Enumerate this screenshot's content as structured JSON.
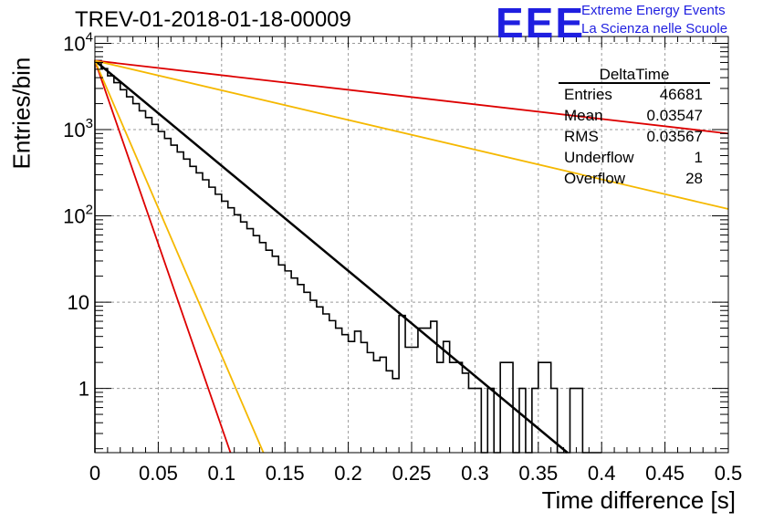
{
  "title": "TREV-01-2018-01-18-00009",
  "logo": {
    "mark": "EEE",
    "line1": "Extreme Energy Events",
    "line2": "La Scienza nelle Scuole",
    "color": "#1f1fe0"
  },
  "stats": {
    "name": "DeltaTime",
    "rows": [
      {
        "label": "Entries",
        "value": "46681"
      },
      {
        "label": "Mean",
        "value": "0.03547"
      },
      {
        "label": "RMS",
        "value": "0.03567"
      },
      {
        "label": "Underflow",
        "value": "1"
      },
      {
        "label": "Overflow",
        "value": "28"
      }
    ]
  },
  "chart_data": {
    "type": "line",
    "title": "TREV-01-2018-01-18-00009",
    "xlabel": "Time difference [s]",
    "ylabel": "Entries/bin",
    "xlim": [
      0,
      0.5
    ],
    "ylim": [
      0.18,
      12000
    ],
    "yscale": "log",
    "grid": true,
    "x_ticks": [
      0,
      0.05,
      0.1,
      0.15,
      0.2,
      0.25,
      0.3,
      0.35,
      0.4,
      0.45,
      0.5
    ],
    "x_tick_labels": [
      "0",
      "0.05",
      "0.1",
      "0.15",
      "0.2",
      "0.25",
      "0.3",
      "0.35",
      "0.4",
      "0.45",
      "0.5"
    ],
    "y_ticks": [
      1,
      10,
      100,
      1000,
      10000
    ],
    "y_tick_labels": [
      "1",
      "10",
      "10^2",
      "10^3",
      "10^4"
    ],
    "histogram": {
      "color": "#000000",
      "x": [
        0.0,
        0.005,
        0.01,
        0.015,
        0.02,
        0.025,
        0.03,
        0.035,
        0.04,
        0.045,
        0.05,
        0.055,
        0.06,
        0.065,
        0.07,
        0.075,
        0.08,
        0.085,
        0.09,
        0.095,
        0.1,
        0.105,
        0.11,
        0.115,
        0.12,
        0.125,
        0.13,
        0.135,
        0.14,
        0.145,
        0.15,
        0.155,
        0.16,
        0.165,
        0.17,
        0.175,
        0.18,
        0.185,
        0.19,
        0.195,
        0.2,
        0.205,
        0.21,
        0.215,
        0.22,
        0.225,
        0.23,
        0.235,
        0.24,
        0.245,
        0.25,
        0.255,
        0.26,
        0.265,
        0.27,
        0.275,
        0.28,
        0.285,
        0.29,
        0.295,
        0.3,
        0.305,
        0.31,
        0.315,
        0.32,
        0.325,
        0.33,
        0.335,
        0.34,
        0.345,
        0.35,
        0.355,
        0.36,
        0.365,
        0.37,
        0.375,
        0.38,
        0.385,
        0.39,
        0.395
      ],
      "values": [
        6300,
        5100,
        4200,
        3500,
        2900,
        2400,
        2000,
        1650,
        1380,
        1150,
        950,
        790,
        660,
        550,
        455,
        375,
        315,
        262,
        215,
        178,
        148,
        124,
        103,
        85,
        71,
        59,
        49,
        40,
        34,
        27,
        23,
        19,
        16,
        13,
        10.5,
        8.8,
        7.3,
        6.1,
        5,
        4.2,
        3.5,
        4.6,
        3.4,
        2.6,
        2.1,
        2.3,
        1.6,
        1.3,
        7,
        3,
        3,
        5,
        5,
        6,
        2,
        3.5,
        2,
        2,
        1.5,
        1,
        1,
        0.18,
        1,
        0.18,
        2,
        2,
        0.18,
        1,
        0.18,
        1,
        2,
        2,
        1,
        0.18,
        0.18,
        1,
        1,
        0.18,
        0.18,
        0.18
      ]
    },
    "series": [
      {
        "color": "#000000",
        "x": [
          0.0,
          0.373
        ],
        "y": [
          6300,
          0.18
        ]
      },
      {
        "color": "#dd0000",
        "x": [
          0.0,
          0.5
        ],
        "y": [
          6300,
          900
        ]
      },
      {
        "color": "#f5b800",
        "x": [
          0.0,
          0.5
        ],
        "y": [
          6300,
          120
        ]
      },
      {
        "color": "#dd0000",
        "x": [
          0.0,
          0.107
        ],
        "y": [
          6300,
          0.18
        ]
      },
      {
        "color": "#f5b800",
        "x": [
          0.0,
          0.133
        ],
        "y": [
          6300,
          0.18
        ]
      }
    ]
  }
}
